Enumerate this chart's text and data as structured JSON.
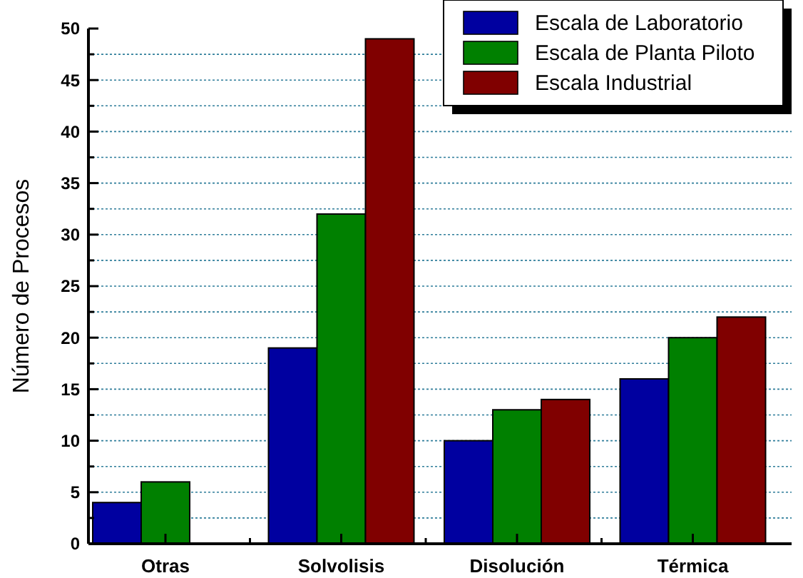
{
  "chart_data": {
    "type": "bar",
    "ylabel": "Número de Procesos",
    "categories": [
      "Otras",
      "Solvolisis",
      "Disolución",
      "Térmica"
    ],
    "series": [
      {
        "name": "Escala de Laboratorio",
        "color": "#0000a0",
        "values": [
          4,
          19,
          10,
          16
        ]
      },
      {
        "name": "Escala de Planta Piloto",
        "color": "#008000",
        "values": [
          6,
          32,
          13,
          20
        ]
      },
      {
        "name": "Escala Industrial",
        "color": "#800000",
        "values": [
          null,
          49,
          14,
          22
        ]
      }
    ],
    "ylim": [
      0,
      50
    ],
    "yticks": [
      0,
      {
        "value": 2.5,
        "label": null
      },
      5,
      {
        "value": 7.5,
        "label": null
      },
      10,
      {
        "value": 12.5,
        "label": null
      },
      15,
      {
        "value": 17.5,
        "label": null
      },
      20,
      {
        "value": 22.5,
        "label": null
      },
      25,
      {
        "value": 27.5,
        "label": null
      },
      30,
      {
        "value": 32.5,
        "label": null
      },
      35,
      {
        "value": 37.5,
        "label": null
      },
      40,
      {
        "value": 42.5,
        "label": null
      },
      45,
      {
        "value": 47.5,
        "label": null
      },
      50
    ],
    "grid": "y",
    "legend": "top right"
  }
}
